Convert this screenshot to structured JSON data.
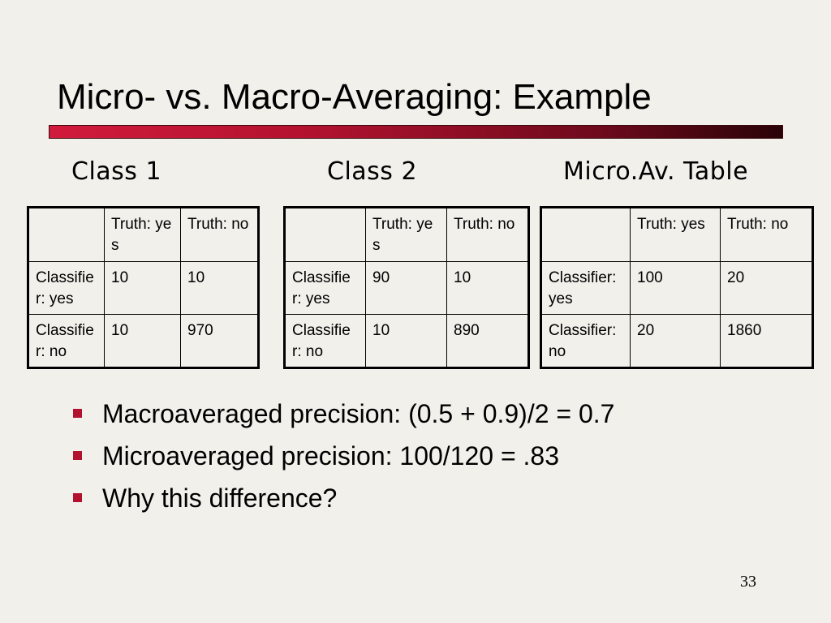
{
  "slide": {
    "title": "Micro- vs. Macro-Averaging: Example",
    "page_number": "33",
    "accent_color": "#b3122f"
  },
  "tables": [
    {
      "caption": "Class 1",
      "header": [
        "",
        "Truth: yes",
        "Truth: no"
      ],
      "rows": [
        [
          "Classifier: yes",
          "10",
          "10"
        ],
        [
          "Classifier: no",
          "10",
          "970"
        ]
      ]
    },
    {
      "caption": "Class 2",
      "header": [
        "",
        "Truth: yes",
        "Truth: no"
      ],
      "rows": [
        [
          "Classifier: yes",
          "90",
          "10"
        ],
        [
          "Classifier: no",
          "10",
          "890"
        ]
      ]
    },
    {
      "caption": "Micro.Av. Table",
      "header": [
        "",
        "Truth: yes",
        "Truth: no"
      ],
      "rows": [
        [
          "Classifier: yes",
          "100",
          "20"
        ],
        [
          "Classifier: no",
          "20",
          "1860"
        ]
      ]
    }
  ],
  "bullets": [
    "Macroaveraged precision: (0.5 + 0.9)/2 = 0.7",
    "Microaveraged precision: 100/120 = .83",
    "Why this difference?"
  ]
}
